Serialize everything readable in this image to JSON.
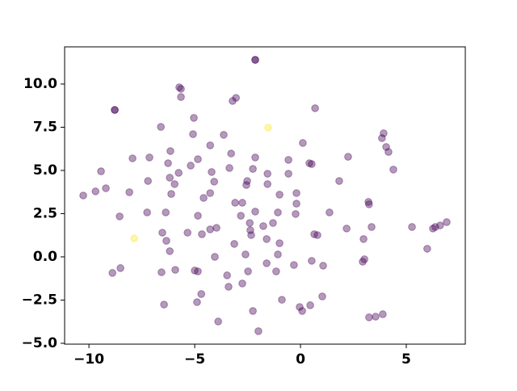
{
  "chart_data": {
    "type": "scatter",
    "xlim": [
      -11.15,
      7.79
    ],
    "ylim": [
      -5.05,
      12.15
    ],
    "xticks": [
      {
        "value": -10,
        "label": "−10"
      },
      {
        "value": -5,
        "label": "−5"
      },
      0,
      5
    ],
    "yticks": [
      {
        "value": -5,
        "label": "−5.0"
      },
      {
        "value": -2.5,
        "label": "−2.5"
      },
      {
        "value": 0,
        "label": "0.0"
      },
      {
        "value": 2.5,
        "label": "2.5"
      },
      {
        "value": 5,
        "label": "5.0"
      },
      {
        "value": 7.5,
        "label": "7.5"
      },
      {
        "value": 10,
        "label": "10.0"
      }
    ],
    "x": [
      -2.14,
      -2.14,
      -8.78,
      -8.78,
      -5.73,
      -5.65,
      -5.65,
      -3.21,
      -3.05,
      0.69,
      -1.53,
      -6.6,
      -5.04,
      -5.08,
      -3.63,
      3.93,
      3.85,
      4.05,
      4.16,
      4.39,
      0.11,
      -4.27,
      -6.15,
      -7.14,
      -7.94,
      -3.28,
      -2.14,
      -0.57,
      -4.85,
      -6.26,
      -5.19,
      -3.36,
      -2.25,
      0.42,
      0.53,
      2.25,
      -9.43,
      -5.76,
      -4.2,
      -0.57,
      -1.56,
      -6.18,
      -7.21,
      -4.08,
      -5.95,
      -2.52,
      -2.56,
      -1.56,
      1.83,
      -9.2,
      -9.69,
      -10.27,
      -8.09,
      -6.11,
      -4.27,
      -4.58,
      -0.99,
      -0.19,
      -2.75,
      -3.09,
      -0.19,
      3.21,
      3.24,
      -7.25,
      -6.37,
      -4.85,
      -2.82,
      -2.14,
      -1.07,
      -0.23,
      1.37,
      -8.55,
      -2.4,
      -1.3,
      -1.76,
      -3.97,
      -4.27,
      -5.34,
      -6.53,
      3.36,
      2.18,
      5.27,
      6.26,
      6.37,
      6.6,
      6.91,
      -2.37,
      -2.33,
      -4.66,
      0.65,
      0.8,
      -7.86,
      -6.34,
      -1.6,
      2.98,
      -3.13,
      -0.99,
      -6.18,
      -2.6,
      -1.07,
      5.99,
      -4.05,
      3.02,
      2.94,
      0.53,
      1.07,
      -1.6,
      -0.31,
      -8.51,
      -8.89,
      -5.92,
      -6.57,
      -5.0,
      -4.85,
      -2.48,
      -1.15,
      -3.47,
      -2.75,
      -3.4,
      -4.69,
      1.03,
      -0.88,
      -4.89,
      -6.45,
      0.46,
      -0.04,
      0.08,
      -2.25,
      3.89,
      3.55,
      3.24,
      -3.89,
      -1.99
    ],
    "y": [
      11.4,
      11.4,
      8.5,
      8.5,
      9.81,
      9.72,
      9.25,
      9.02,
      9.2,
      8.6,
      7.48,
      7.52,
      8.04,
      7.1,
      7.06,
      7.15,
      6.87,
      6.36,
      6.07,
      5.05,
      6.59,
      6.45,
      6.12,
      5.75,
      5.7,
      5.98,
      5.75,
      5.61,
      5.65,
      5.42,
      5.28,
      5.14,
      5.09,
      5.42,
      5.37,
      5.79,
      4.95,
      4.86,
      4.91,
      4.81,
      4.81,
      4.58,
      4.39,
      4.35,
      4.21,
      4.39,
      4.16,
      4.21,
      4.39,
      3.97,
      3.79,
      3.55,
      3.74,
      3.64,
      3.69,
      3.41,
      3.6,
      3.69,
      3.13,
      3.13,
      3.08,
      3.18,
      3.04,
      2.57,
      2.57,
      2.38,
      2.38,
      2.62,
      2.57,
      2.48,
      2.57,
      2.34,
      1.96,
      1.96,
      1.78,
      1.68,
      1.59,
      1.4,
      1.4,
      1.73,
      1.64,
      1.73,
      1.64,
      1.73,
      1.82,
      2.01,
      1.54,
      1.26,
      1.31,
      1.31,
      1.26,
      1.07,
      0.93,
      1.03,
      1.03,
      0.75,
      0.79,
      0.33,
      0.14,
      0.14,
      0.47,
      0.0,
      -0.14,
      -0.28,
      -0.23,
      -0.51,
      -0.37,
      -0.47,
      -0.65,
      -0.93,
      -0.75,
      -0.89,
      -0.79,
      -0.84,
      -0.84,
      -0.84,
      -1.07,
      -1.54,
      -1.73,
      -2.15,
      -2.29,
      -2.48,
      -2.62,
      -2.76,
      -2.8,
      -2.9,
      -3.13,
      -3.13,
      -3.32,
      -3.46,
      -3.5,
      -3.74,
      -4.3
    ],
    "color": "#440154",
    "highlight_color": "#fde725",
    "highlight": [
      10,
      91
    ]
  }
}
